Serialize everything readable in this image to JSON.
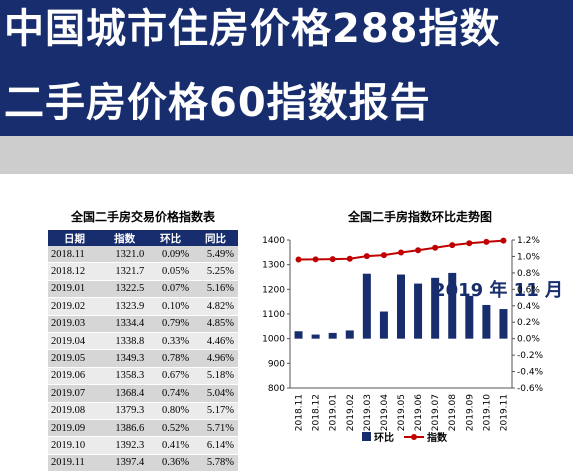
{
  "header": {
    "line1": "中国城市住房价格288指数",
    "line2": "二手房价格60指数报告",
    "date": "2019 年 11 月"
  },
  "table": {
    "title": "全国二手房交易价格指数表",
    "columns": [
      "日期",
      "指数",
      "环比",
      "同比"
    ],
    "rows": [
      [
        "2018.11",
        "1321.0",
        "0.09%",
        "5.49%"
      ],
      [
        "2018.12",
        "1321.7",
        "0.05%",
        "5.25%"
      ],
      [
        "2019.01",
        "1322.5",
        "0.07%",
        "5.16%"
      ],
      [
        "2019.02",
        "1323.9",
        "0.10%",
        "4.82%"
      ],
      [
        "2019.03",
        "1334.4",
        "0.79%",
        "4.85%"
      ],
      [
        "2019.04",
        "1338.8",
        "0.33%",
        "4.46%"
      ],
      [
        "2019.05",
        "1349.3",
        "0.78%",
        "4.96%"
      ],
      [
        "2019.06",
        "1358.3",
        "0.67%",
        "5.18%"
      ],
      [
        "2019.07",
        "1368.4",
        "0.74%",
        "5.04%"
      ],
      [
        "2019.08",
        "1379.3",
        "0.80%",
        "5.17%"
      ],
      [
        "2019.09",
        "1386.6",
        "0.52%",
        "5.71%"
      ],
      [
        "2019.10",
        "1392.3",
        "0.41%",
        "6.14%"
      ],
      [
        "2019.11",
        "1397.4",
        "0.36%",
        "5.78%"
      ]
    ]
  },
  "chart_data": {
    "type": "bar",
    "title": "全国二手房指数环比走势图",
    "categories": [
      "2018.11",
      "2018.12",
      "2019.01",
      "2019.02",
      "2019.03",
      "2019.04",
      "2019.05",
      "2019.06",
      "2019.07",
      "2019.08",
      "2019.09",
      "2019.10",
      "2019.11"
    ],
    "series": [
      {
        "name": "环比",
        "type": "bar",
        "axis": "right",
        "color": "#172d6d",
        "values": [
          0.09,
          0.05,
          0.07,
          0.1,
          0.79,
          0.33,
          0.78,
          0.67,
          0.74,
          0.8,
          0.52,
          0.41,
          0.36
        ]
      },
      {
        "name": "指数",
        "type": "line",
        "axis": "left",
        "color": "#c00000",
        "values": [
          1321.0,
          1321.7,
          1322.5,
          1323.9,
          1334.4,
          1338.8,
          1349.3,
          1358.3,
          1368.4,
          1379.3,
          1386.6,
          1392.3,
          1397.4
        ]
      }
    ],
    "ylim_left": [
      800,
      1400
    ],
    "yticks_left": [
      "1400",
      "1300",
      "1200",
      "1100",
      "1000",
      "900",
      "800"
    ],
    "ylim_right": [
      -0.6,
      1.2
    ],
    "yticks_right": [
      "1.2%",
      "1.0%",
      "0.8%",
      "0.6%",
      "0.4%",
      "0.2%",
      "0.0%",
      "-0.2%",
      "-0.4%",
      "-0.6%"
    ],
    "legend": "bottom"
  }
}
